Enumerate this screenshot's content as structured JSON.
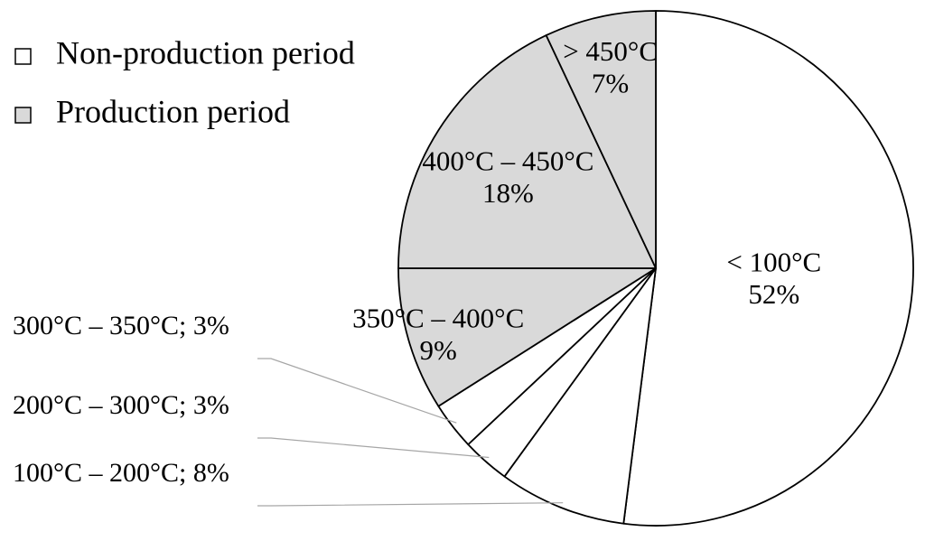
{
  "chart_data": {
    "type": "pie",
    "title": "",
    "legend": {
      "placement": "top-left",
      "entries": [
        {
          "name": "Non-production period",
          "color": "#ffffff"
        },
        {
          "name": "Production period",
          "color": "#d9d9d9"
        }
      ]
    },
    "slices": [
      {
        "label": "< 100°C",
        "value": 52,
        "value_label": "52%",
        "group": "Non-production period",
        "color": "#ffffff",
        "label_style": "inside"
      },
      {
        "label": "100°C – 200°C",
        "value": 8,
        "value_label": "8%",
        "group": "Non-production period",
        "color": "#ffffff",
        "label_style": "callout",
        "callout_text": "100°C – 200°C; 8%"
      },
      {
        "label": "200°C – 300°C",
        "value": 3,
        "value_label": "3%",
        "group": "Non-production period",
        "color": "#ffffff",
        "label_style": "callout",
        "callout_text": "200°C – 300°C; 3%"
      },
      {
        "label": "300°C – 350°C",
        "value": 3,
        "value_label": "3%",
        "group": "Non-production period",
        "color": "#ffffff",
        "label_style": "callout",
        "callout_text": "300°C – 350°C; 3%"
      },
      {
        "label": "350°C – 400°C",
        "value": 9,
        "value_label": "9%",
        "group": "Production period",
        "color": "#d9d9d9",
        "label_style": "inside"
      },
      {
        "label": "400°C – 450°C",
        "value": 18,
        "value_label": "18%",
        "group": "Production period",
        "color": "#d9d9d9",
        "label_style": "inside"
      },
      {
        "label": "> 450°C",
        "value": 7,
        "value_label": "7%",
        "group": "Production period",
        "color": "#d9d9d9",
        "label_style": "inside"
      }
    ],
    "start_angle_deg": 0,
    "direction": "clockwise"
  }
}
